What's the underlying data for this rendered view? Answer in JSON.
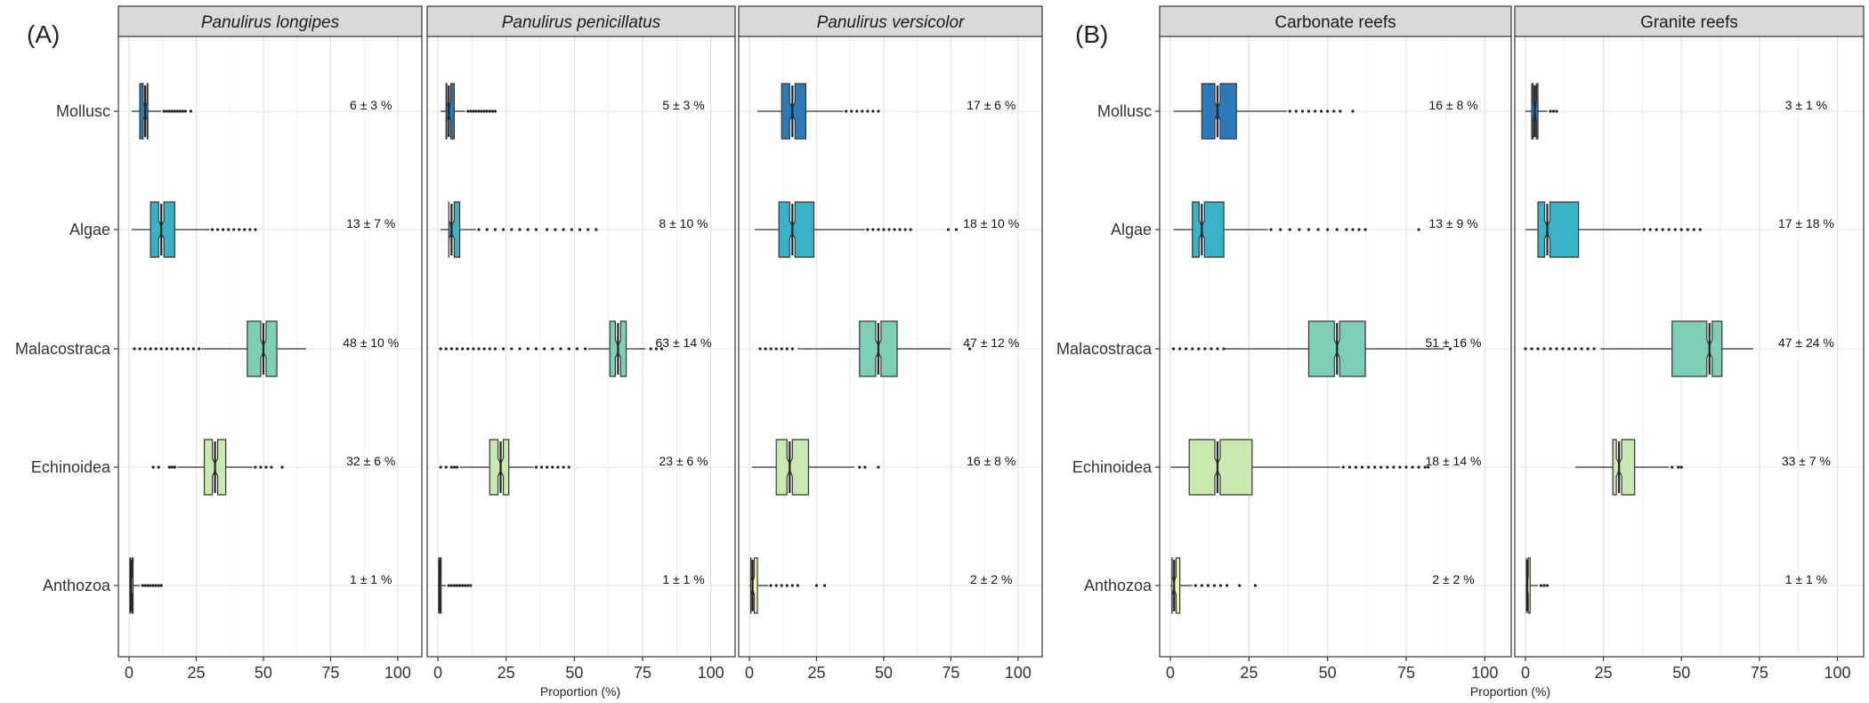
{
  "figure": {
    "panel_labels": [
      "(A)",
      "(B)"
    ],
    "xlabel": "Proportion (%)",
    "xticks": [
      0,
      25,
      50,
      75,
      100
    ],
    "categories": [
      "Mollusc",
      "Algae",
      "Malacostraca",
      "Echinoidea",
      "Anthozoa"
    ],
    "category_colors": {
      "Mollusc": "#2b7bba",
      "Algae": "#3ab3c8",
      "Malacostraca": "#7ecfb9",
      "Echinoidea": "#c8e9b0",
      "Anthozoa": "#f4f2b5"
    }
  },
  "chart_data": [
    {
      "type": "box",
      "group": "A",
      "title": "Panulirus longipes",
      "title_italic": true,
      "xlim": [
        0,
        105
      ],
      "boxes": [
        {
          "category": "Mollusc",
          "q1": 4,
          "median": 6,
          "q3": 7,
          "whisker_low": 1,
          "whisker_high": 12,
          "outliers": [
            13,
            14,
            15,
            16,
            17,
            18,
            19,
            20,
            21,
            23
          ],
          "label": "6 ± 3 %"
        },
        {
          "category": "Algae",
          "q1": 8,
          "median": 12,
          "q3": 17,
          "whisker_low": 1,
          "whisker_high": 30,
          "outliers": [
            31,
            33,
            35,
            37,
            39,
            41,
            43,
            45,
            47
          ],
          "label": "13 ± 7 %"
        },
        {
          "category": "Malacostraca",
          "q1": 44,
          "median": 50,
          "q3": 55,
          "whisker_low": 27,
          "whisker_high": 66,
          "outliers": [
            2,
            4,
            6,
            8,
            10,
            12,
            14,
            16,
            18,
            20,
            22,
            24,
            26
          ],
          "label": "48 ± 10 %"
        },
        {
          "category": "Echinoidea",
          "q1": 28,
          "median": 32,
          "q3": 36,
          "whisker_low": 18,
          "whisker_high": 46,
          "outliers": [
            9,
            11,
            15,
            16,
            17,
            47,
            49,
            51,
            53,
            57
          ],
          "label": "32 ± 6 %"
        },
        {
          "category": "Anthozoa",
          "q1": 0.3,
          "median": 0.8,
          "q3": 1.5,
          "whisker_low": 0,
          "whisker_high": 4,
          "outliers": [
            5,
            6,
            7,
            8,
            9,
            10,
            11,
            12
          ],
          "label": "1 ± 1 %"
        }
      ]
    },
    {
      "type": "box",
      "group": "A",
      "title": "Panulirus penicillatus",
      "title_italic": true,
      "xlim": [
        0,
        105
      ],
      "boxes": [
        {
          "category": "Mollusc",
          "q1": 3,
          "median": 4,
          "q3": 6,
          "whisker_low": 1,
          "whisker_high": 10,
          "outliers": [
            11,
            12,
            13,
            14,
            15,
            16,
            17,
            18,
            19,
            20,
            21
          ],
          "label": "5 ± 3 %"
        },
        {
          "category": "Algae",
          "q1": 4,
          "median": 5,
          "q3": 8,
          "whisker_low": 1,
          "whisker_high": 14,
          "outliers": [
            15,
            18,
            21,
            24,
            27,
            30,
            33,
            36,
            40,
            43,
            46,
            49,
            52,
            55,
            58
          ],
          "label": "8 ± 10 %"
        },
        {
          "category": "Malacostraca",
          "q1": 63,
          "median": 66,
          "q3": 69,
          "whisker_low": 55,
          "whisker_high": 76,
          "outliers": [
            1,
            3,
            5,
            7,
            9,
            11,
            13,
            15,
            17,
            19,
            21,
            24,
            27,
            30,
            33,
            36,
            39,
            42,
            45,
            48,
            51,
            54,
            78,
            80,
            82
          ],
          "label": "63 ± 14 %"
        },
        {
          "category": "Echinoidea",
          "q1": 19,
          "median": 23,
          "q3": 26,
          "whisker_low": 8,
          "whisker_high": 35,
          "outliers": [
            1,
            3,
            5,
            6,
            7,
            36,
            38,
            40,
            42,
            44,
            46,
            48
          ],
          "label": "23 ± 6 %"
        },
        {
          "category": "Anthozoa",
          "q1": 0.3,
          "median": 0.6,
          "q3": 1.2,
          "whisker_low": 0,
          "whisker_high": 3,
          "outliers": [
            4,
            5,
            6,
            7,
            8,
            9,
            10,
            11,
            12
          ],
          "label": "1 ± 1 %"
        }
      ]
    },
    {
      "type": "box",
      "group": "A",
      "title": "Panulirus versicolor",
      "title_italic": true,
      "xlim": [
        0,
        105
      ],
      "boxes": [
        {
          "category": "Mollusc",
          "q1": 12,
          "median": 16,
          "q3": 21,
          "whisker_low": 3,
          "whisker_high": 35,
          "outliers": [
            36,
            38,
            40,
            42,
            44,
            46,
            48
          ],
          "label": "17 ± 6 %"
        },
        {
          "category": "Algae",
          "q1": 11,
          "median": 16,
          "q3": 24,
          "whisker_low": 2,
          "whisker_high": 43,
          "outliers": [
            44,
            46,
            48,
            50,
            52,
            54,
            56,
            58,
            60,
            74,
            77
          ],
          "label": "18 ± 10 %"
        },
        {
          "category": "Malacostraca",
          "q1": 41,
          "median": 48,
          "q3": 55,
          "whisker_low": 18,
          "whisker_high": 75,
          "outliers": [
            4,
            6,
            8,
            10,
            12,
            14,
            16,
            82
          ],
          "label": "47 ± 12 %"
        },
        {
          "category": "Echinoidea",
          "q1": 10,
          "median": 15,
          "q3": 22,
          "whisker_low": 1,
          "whisker_high": 39,
          "outliers": [
            41,
            43,
            48
          ],
          "label": "16 ± 8 %"
        },
        {
          "category": "Anthozoa",
          "q1": 0.5,
          "median": 1.2,
          "q3": 3,
          "whisker_low": 0,
          "whisker_high": 7,
          "outliers": [
            8,
            10,
            12,
            14,
            16,
            18,
            25,
            28
          ],
          "label": "2 ± 2 %"
        }
      ]
    },
    {
      "type": "box",
      "group": "B",
      "title": "Carbonate reefs",
      "title_italic": false,
      "xlim": [
        0,
        105
      ],
      "boxes": [
        {
          "category": "Mollusc",
          "q1": 10,
          "median": 15,
          "q3": 21,
          "whisker_low": 1,
          "whisker_high": 37,
          "outliers": [
            38,
            40,
            42,
            44,
            46,
            48,
            50,
            52,
            54,
            58
          ],
          "label": "16 ± 8 %"
        },
        {
          "category": "Algae",
          "q1": 7,
          "median": 10,
          "q3": 17,
          "whisker_low": 1,
          "whisker_high": 31,
          "outliers": [
            32,
            35,
            38,
            41,
            44,
            47,
            50,
            53,
            56,
            58,
            60,
            62,
            79
          ],
          "label": "13 ± 9 %"
        },
        {
          "category": "Malacostraca",
          "q1": 44,
          "median": 53,
          "q3": 62,
          "whisker_low": 17,
          "whisker_high": 87,
          "outliers": [
            1,
            3,
            5,
            7,
            9,
            11,
            13,
            15,
            17,
            89
          ],
          "label": "51 ± 16 %"
        },
        {
          "category": "Echinoidea",
          "q1": 6,
          "median": 15,
          "q3": 26,
          "whisker_low": 0,
          "whisker_high": 54,
          "outliers": [
            55,
            57,
            59,
            61,
            63,
            65,
            67,
            69,
            71,
            73,
            75,
            77,
            79,
            81,
            82
          ],
          "label": "18 ± 14 %"
        },
        {
          "category": "Anthozoa",
          "q1": 0.5,
          "median": 1.2,
          "q3": 3,
          "whisker_low": 0,
          "whisker_high": 7,
          "outliers": [
            8,
            10,
            12,
            14,
            16,
            18,
            22,
            27
          ],
          "label": "2 ± 2 %"
        }
      ]
    },
    {
      "type": "box",
      "group": "B",
      "title": "Granite reefs",
      "title_italic": false,
      "xlim": [
        0,
        105
      ],
      "boxes": [
        {
          "category": "Mollusc",
          "q1": 2,
          "median": 3,
          "q3": 4,
          "whisker_low": 0,
          "whisker_high": 7,
          "outliers": [
            8,
            9,
            10
          ],
          "label": "3 ± 1 %"
        },
        {
          "category": "Algae",
          "q1": 4,
          "median": 7,
          "q3": 17,
          "whisker_low": 0,
          "whisker_high": 37,
          "outliers": [
            38,
            40,
            42,
            44,
            46,
            48,
            50,
            52,
            54,
            56
          ],
          "label": "17 ± 18 %"
        },
        {
          "category": "Malacostraca",
          "q1": 47,
          "median": 59,
          "q3": 63,
          "whisker_low": 24,
          "whisker_high": 73,
          "outliers": [
            0,
            2,
            4,
            6,
            8,
            10,
            12,
            14,
            16,
            18,
            20,
            22
          ],
          "label": "47 ± 24 %"
        },
        {
          "category": "Echinoidea",
          "q1": 28,
          "median": 30,
          "q3": 35,
          "whisker_low": 16,
          "whisker_high": 46,
          "outliers": [
            47,
            49,
            50
          ],
          "label": "33 ± 7 %"
        },
        {
          "category": "Anthozoa",
          "q1": 0.3,
          "median": 0.6,
          "q3": 1.5,
          "whisker_low": 0,
          "whisker_high": 4,
          "outliers": [
            5,
            6,
            7
          ],
          "label": "1 ± 1 %"
        }
      ]
    }
  ]
}
